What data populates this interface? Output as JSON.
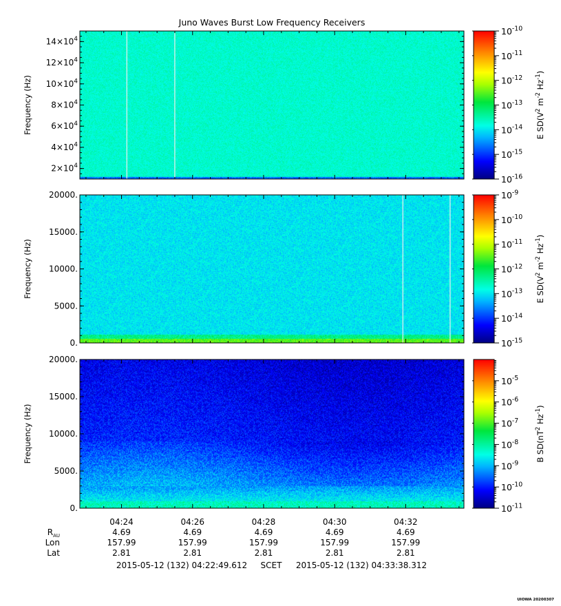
{
  "title": "Juno Waves Burst Low Frequency Receivers",
  "chart_data": [
    {
      "type": "heatmap",
      "ylabel": "Frequency (Hz)",
      "ylim": [
        10000,
        150000
      ],
      "yticks": [
        {
          "v": 20000,
          "base": "2×10",
          "exp": "4"
        },
        {
          "v": 40000,
          "base": "4×10",
          "exp": "4"
        },
        {
          "v": 60000,
          "base": "6×10",
          "exp": "4"
        },
        {
          "v": 80000,
          "base": "8×10",
          "exp": "4"
        },
        {
          "v": 100000,
          "base": "10×10",
          "exp": "4"
        },
        {
          "v": 120000,
          "base": "12×10",
          "exp": "4"
        },
        {
          "v": 140000,
          "base": "14×10",
          "exp": "4"
        }
      ],
      "colorbar": {
        "label_parts": [
          "E SD(V",
          "2",
          " m",
          "-2",
          " Hz",
          "-1",
          ")"
        ],
        "log_min": -16,
        "log_max": -10,
        "ticks": [
          {
            "v": -16,
            "text": "10",
            "exp": "-16"
          },
          {
            "v": -15,
            "text": "10",
            "exp": "-15"
          },
          {
            "v": -14,
            "text": "10",
            "exp": "-14"
          },
          {
            "v": -13,
            "text": "10",
            "exp": "-13"
          },
          {
            "v": -12,
            "text": "10",
            "exp": "-12"
          },
          {
            "v": -11,
            "text": "10",
            "exp": "-11"
          },
          {
            "v": -10,
            "text": "10",
            "exp": "-10"
          }
        ]
      },
      "background_level": -13.7,
      "gap_lines_min": [
        24.15,
        25.5
      ]
    },
    {
      "type": "heatmap",
      "ylabel": "Frequency (Hz)",
      "ylim": [
        0,
        20000
      ],
      "yticks": [
        {
          "v": 0,
          "text": "0."
        },
        {
          "v": 5000,
          "text": "5000."
        },
        {
          "v": 10000,
          "text": "10000."
        },
        {
          "v": 15000,
          "text": "15000."
        },
        {
          "v": 20000,
          "text": "20000."
        }
      ],
      "colorbar": {
        "label_parts": [
          "E SD(V",
          "2",
          " m",
          "-2",
          " Hz",
          "-1",
          ")"
        ],
        "log_min": -15,
        "log_max": -9,
        "ticks": [
          {
            "v": -15,
            "text": "10",
            "exp": "-15"
          },
          {
            "v": -14,
            "text": "10",
            "exp": "-14"
          },
          {
            "v": -13,
            "text": "10",
            "exp": "-13"
          },
          {
            "v": -12,
            "text": "10",
            "exp": "-12"
          },
          {
            "v": -11,
            "text": "10",
            "exp": "-11"
          },
          {
            "v": -10,
            "text": "10",
            "exp": "-10"
          },
          {
            "v": -9,
            "text": "10",
            "exp": "-9"
          }
        ]
      },
      "background_level": -13.0,
      "low_freq_enhancement_level": -11.5,
      "gap_lines_min": [
        31.92,
        33.25
      ]
    },
    {
      "type": "heatmap",
      "ylabel": "Frequency (Hz)",
      "ylim": [
        0,
        20000
      ],
      "yticks": [
        {
          "v": 0,
          "text": "0."
        },
        {
          "v": 5000,
          "text": "5000."
        },
        {
          "v": 10000,
          "text": "10000."
        },
        {
          "v": 15000,
          "text": "15000."
        },
        {
          "v": 20000,
          "text": "20000."
        }
      ],
      "colorbar": {
        "label_parts": [
          "B SD(nT",
          "2",
          " Hz",
          "-1",
          ")"
        ],
        "log_min": -11,
        "log_max": -4,
        "ticks": [
          {
            "v": -11,
            "text": "10",
            "exp": "-11"
          },
          {
            "v": -10,
            "text": "10",
            "exp": "-10"
          },
          {
            "v": -9,
            "text": "10",
            "exp": "-9"
          },
          {
            "v": -8,
            "text": "10",
            "exp": "-8"
          },
          {
            "v": -7,
            "text": "10",
            "exp": "-7"
          },
          {
            "v": -6,
            "text": "10",
            "exp": "-6"
          },
          {
            "v": -5,
            "text": "10",
            "exp": "-5"
          }
        ]
      },
      "background_level": -10.2,
      "low_freq_enhancement_level": -8.2
    }
  ],
  "x_axis": {
    "xlim_min": [
      22.827,
      33.639
    ],
    "ticks": [
      {
        "min": 24,
        "label": "04:24"
      },
      {
        "min": 26,
        "label": "04:26"
      },
      {
        "min": 28,
        "label": "04:28"
      },
      {
        "min": 30,
        "label": "04:30"
      },
      {
        "min": 32,
        "label": "04:32"
      }
    ]
  },
  "ephemeris": {
    "rows": [
      {
        "label": "R",
        "sub": "AU",
        "values": [
          "4.69",
          "4.69",
          "4.69",
          "4.69",
          "4.69"
        ]
      },
      {
        "label": "Lon",
        "values": [
          "157.99",
          "157.99",
          "157.99",
          "157.99",
          "157.99"
        ]
      },
      {
        "label": "Lat",
        "values": [
          "2.81",
          "2.81",
          "2.81",
          "2.81",
          "2.81"
        ]
      }
    ]
  },
  "time_range": {
    "start": "2015-05-12 (132) 04:22:49.612",
    "scet": "SCET",
    "end": "2015-05-12 (132) 04:33:38.312"
  },
  "footer": "UIOWA 20200307"
}
